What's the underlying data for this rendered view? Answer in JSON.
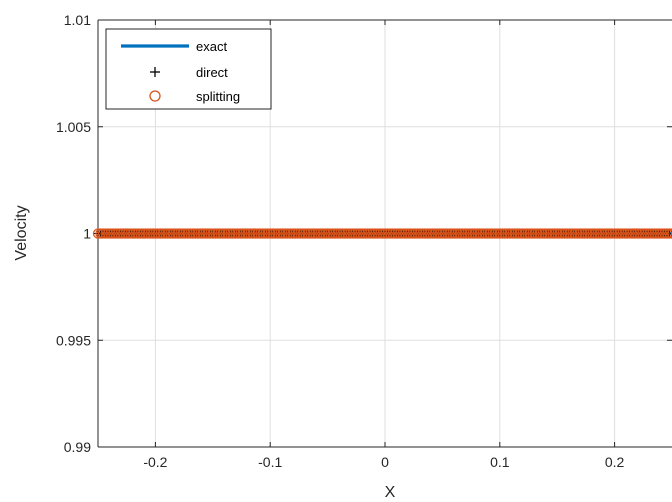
{
  "chart_data": {
    "type": "line",
    "xlabel": "X",
    "ylabel": "Velocity",
    "xlim": [
      -0.25,
      0.25
    ],
    "ylim": [
      0.99,
      1.01
    ],
    "xticks": [
      -0.2,
      -0.1,
      0,
      0.1,
      0.2
    ],
    "xtick_labels": [
      "-0.2",
      "-0.1",
      "0",
      "0.1",
      "0.2"
    ],
    "yticks": [
      0.99,
      0.995,
      1,
      1.005,
      1.01
    ],
    "ytick_labels": [
      "0.99",
      "0.995",
      "1",
      "1.005",
      "1.01"
    ],
    "grid": true,
    "legend_position": "top-left",
    "x": [
      -0.25,
      -0.2,
      -0.15,
      -0.1,
      -0.05,
      0,
      0.05,
      0.1,
      0.15,
      0.2,
      0.25
    ],
    "series": [
      {
        "name": "exact",
        "style": "line",
        "color": "#0072BD",
        "values": [
          1,
          1,
          1,
          1,
          1,
          1,
          1,
          1,
          1,
          1,
          1
        ]
      },
      {
        "name": "direct",
        "style": "plus-marker",
        "color": "#000000",
        "values": [
          1,
          1,
          1,
          1,
          1,
          1,
          1,
          1,
          1,
          1,
          1
        ]
      },
      {
        "name": "splitting",
        "style": "circle-marker",
        "color": "#D95319",
        "values": [
          1,
          1,
          1,
          1,
          1,
          1,
          1,
          1,
          1,
          1,
          1
        ]
      }
    ]
  }
}
